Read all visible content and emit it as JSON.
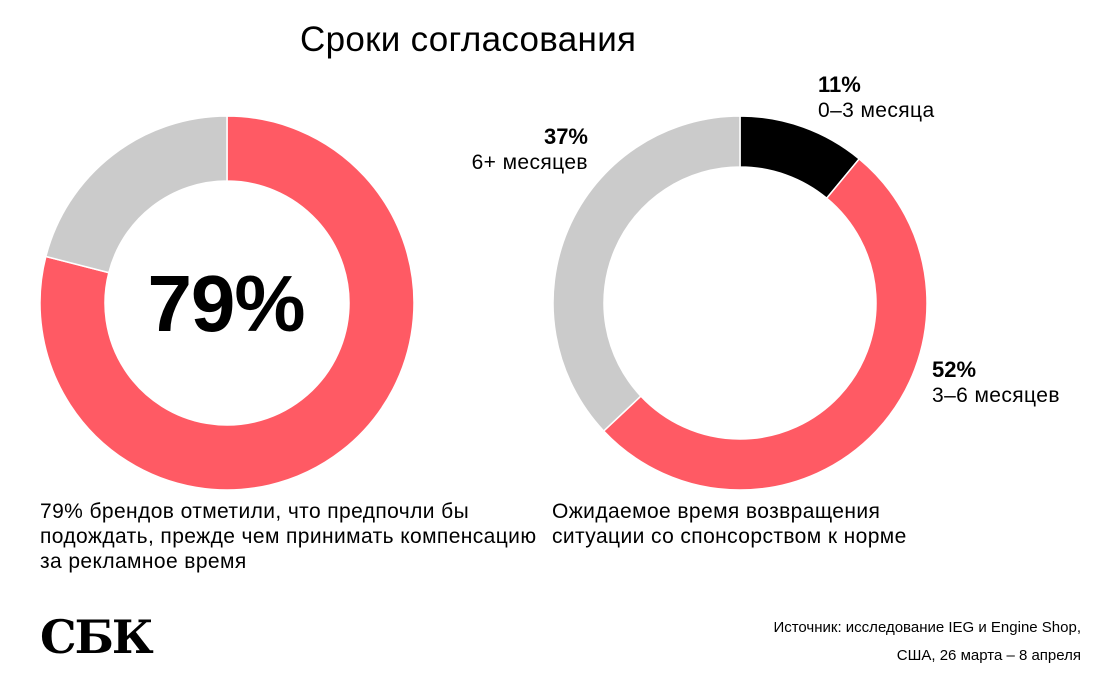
{
  "title": "Сроки согласования",
  "colors": {
    "red": "#ff5a64",
    "gray": "#cbcbcb",
    "black": "#000000"
  },
  "chart_data": [
    {
      "type": "pie",
      "variant": "donut",
      "center_label": "79%",
      "caption": "79% брендов отметили, что предпочли бы подождать, прежде чем принимать компенсацию за рекламное время",
      "slices": [
        {
          "label": "",
          "value": 79,
          "color": "#ff5a64"
        },
        {
          "label": "",
          "value": 21,
          "color": "#cbcbcb"
        }
      ]
    },
    {
      "type": "pie",
      "variant": "donut",
      "caption": "Ожидаемое время возвращения ситуации со спонсорством к норме",
      "slices": [
        {
          "label": "0–3 месяца",
          "pct_label": "11%",
          "value": 11,
          "color": "#000000"
        },
        {
          "label": "3–6 месяцев",
          "pct_label": "52%",
          "value": 52,
          "color": "#ff5a64"
        },
        {
          "label": "6+ месяцев",
          "pct_label": "37%",
          "value": 37,
          "color": "#cbcbcb"
        }
      ]
    }
  ],
  "footer": {
    "logo": "СБК",
    "source_line1": "Источник: исследование IEG и Engine Shop,",
    "source_line2": "США, 26 марта – 8 апреля"
  }
}
